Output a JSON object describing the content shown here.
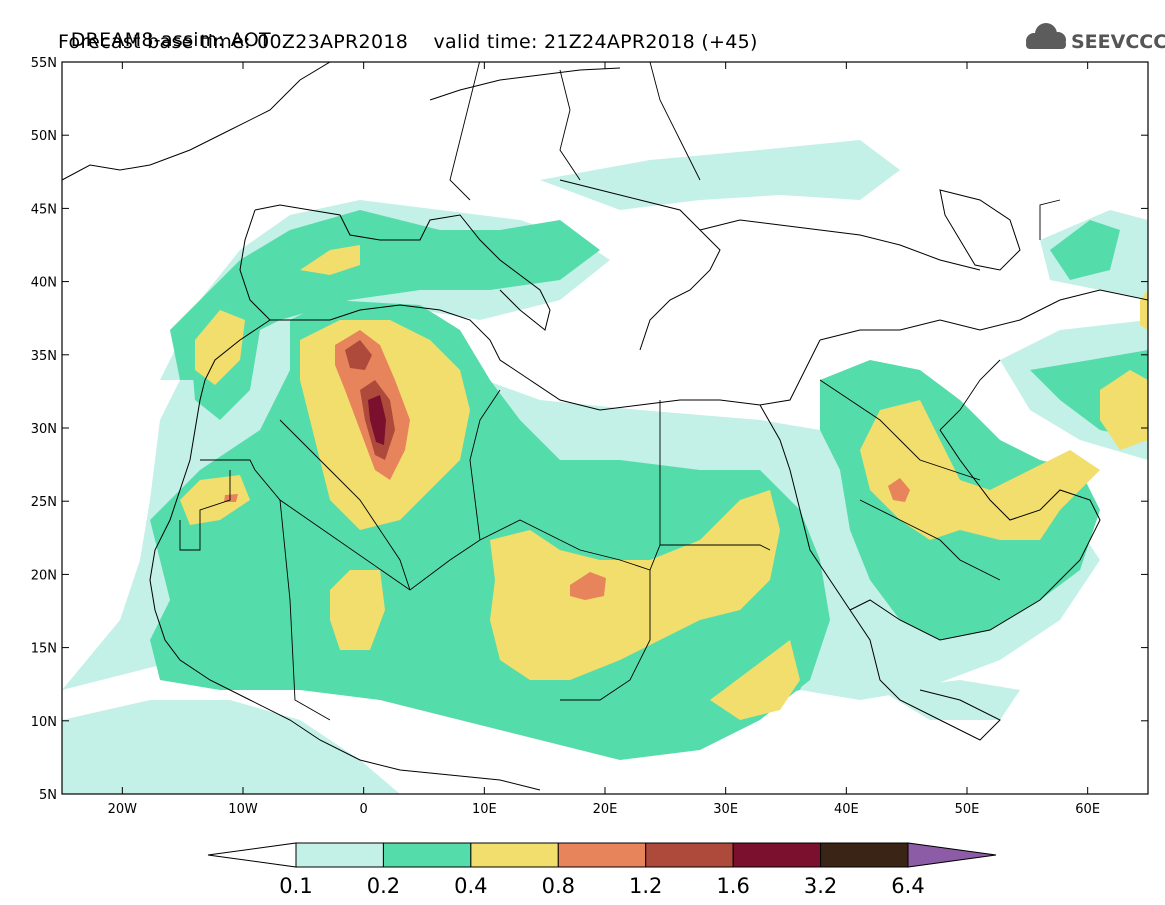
{
  "header": {
    "line1": "DREAM8-assim: AOT",
    "line2_base": "Forecast base time: 00Z23APR2018",
    "line2_valid": "valid time: 21Z24APR2018 (+45)"
  },
  "logo": {
    "text": "SEEVCCC",
    "icon": "cloud-icon"
  },
  "map": {
    "lon_range": [
      -25,
      65
    ],
    "lat_range": [
      5,
      55
    ],
    "lon_ticks": [
      {
        "lon": -20,
        "label": "20W"
      },
      {
        "lon": -10,
        "label": "10W"
      },
      {
        "lon": 0,
        "label": "0"
      },
      {
        "lon": 10,
        "label": "10E"
      },
      {
        "lon": 20,
        "label": "20E"
      },
      {
        "lon": 30,
        "label": "30E"
      },
      {
        "lon": 40,
        "label": "40E"
      },
      {
        "lon": 50,
        "label": "50E"
      },
      {
        "lon": 60,
        "label": "60E"
      }
    ],
    "lat_ticks": [
      {
        "lat": 55,
        "label": "55N"
      },
      {
        "lat": 50,
        "label": "50N"
      },
      {
        "lat": 45,
        "label": "45N"
      },
      {
        "lat": 40,
        "label": "40N"
      },
      {
        "lat": 35,
        "label": "35N"
      },
      {
        "lat": 30,
        "label": "30N"
      },
      {
        "lat": 25,
        "label": "25N"
      },
      {
        "lat": 20,
        "label": "20N"
      },
      {
        "lat": 15,
        "label": "15N"
      },
      {
        "lat": 10,
        "label": "10N"
      },
      {
        "lat": 5,
        "label": "5N"
      }
    ]
  },
  "colorbar": {
    "labels": [
      "0.1",
      "0.2",
      "0.4",
      "0.8",
      "1.2",
      "1.6",
      "3.2",
      "6.4"
    ],
    "colors": [
      "#c3f0e7",
      "#55dcab",
      "#f2de6c",
      "#e8845c",
      "#ad4a3c",
      "#7b0f2e",
      "#3a2416",
      "#8c5ca6"
    ]
  },
  "chart_data": {
    "type": "heatmap",
    "field": "AOT",
    "levels": [
      0.1,
      0.2,
      0.4,
      0.8,
      1.2,
      1.6,
      3.2,
      6.4
    ],
    "features": [
      {
        "name": "Northern Africa broad dust plume",
        "level_min": 0.2,
        "center_lon": 10,
        "center_lat": 20
      },
      {
        "name": "Algeria dust core",
        "level_min": 1.6,
        "center_lon": 1.5,
        "center_lat": 31
      },
      {
        "name": "Chad/Sudan dust",
        "level_min": 0.8,
        "center_lon": 19.5,
        "center_lat": 21
      },
      {
        "name": "Arabian Peninsula dust",
        "level_min": 0.8,
        "center_lon": 44.5,
        "center_lat": 26
      },
      {
        "name": "Western Sahara dust",
        "level_min": 0.8,
        "center_lon": -10.5,
        "center_lat": 25
      }
    ]
  }
}
